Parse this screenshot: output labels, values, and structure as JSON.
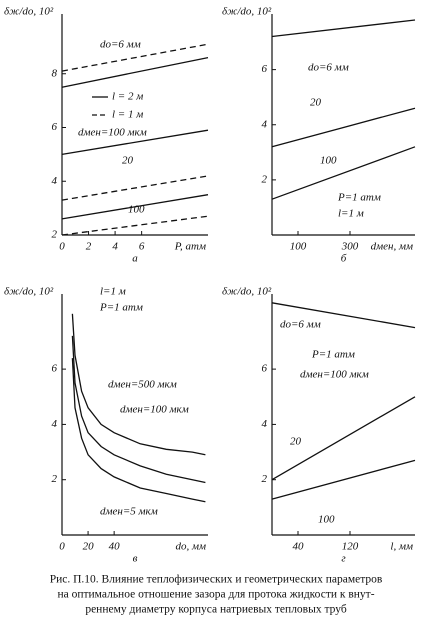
{
  "chart_data": [
    {
      "type": "line",
      "label": "а",
      "ylabel": "δж/dо, 10²",
      "xlabel": "P, атм",
      "xlim": [
        0,
        11
      ],
      "ylim": [
        2,
        10
      ],
      "xticks": [
        0,
        2,
        4,
        6
      ],
      "yticks": [
        2,
        4,
        6,
        8
      ],
      "x": [
        0,
        11
      ],
      "legend": [
        {
          "label": "l = 2 м",
          "dash": false
        },
        {
          "label": "l = 1 м",
          "dash": true
        }
      ],
      "series": [
        {
          "dash": false,
          "values": [
            7.5,
            8.6
          ]
        },
        {
          "dash": true,
          "values": [
            8.1,
            9.1
          ]
        },
        {
          "dash": false,
          "values": [
            5.0,
            5.9
          ]
        },
        {
          "dash": true,
          "values": [
            3.3,
            4.2
          ]
        },
        {
          "dash": false,
          "values": [
            2.6,
            3.5
          ]
        },
        {
          "dash": true,
          "values": [
            2.0,
            2.7
          ]
        }
      ],
      "annotations": [
        "dо=6 мм",
        "dмен=100 мкм",
        "20",
        "100"
      ]
    },
    {
      "type": "line",
      "label": "б",
      "ylabel": "δж/dо, 10²",
      "xlabel": "dмен, мм",
      "xlim": [
        0,
        550
      ],
      "ylim": [
        0,
        7.8
      ],
      "xticks": [
        100,
        300
      ],
      "yticks": [
        2,
        4,
        6
      ],
      "x": [
        0,
        550
      ],
      "series": [
        {
          "dash": false,
          "values": [
            7.2,
            7.8
          ]
        },
        {
          "dash": false,
          "values": [
            3.2,
            4.6
          ]
        },
        {
          "dash": false,
          "values": [
            1.3,
            3.2
          ]
        }
      ],
      "annotations": [
        "dо=6 мм",
        "20",
        "100",
        "P=1 атм",
        "l=1 м"
      ]
    },
    {
      "type": "line",
      "label": "в",
      "ylabel": "δж/dо, 10²",
      "xlabel": "dо, мм",
      "xlim": [
        0,
        112
      ],
      "ylim": [
        0,
        8.5
      ],
      "xticks": [
        0,
        20,
        40
      ],
      "yticks": [
        2,
        4,
        6
      ],
      "x": [
        8,
        10,
        15,
        20,
        30,
        40,
        60,
        80,
        100,
        110
      ],
      "series": [
        {
          "dash": false,
          "values": [
            8.0,
            6.5,
            5.2,
            4.6,
            4.0,
            3.7,
            3.3,
            3.1,
            3.0,
            2.9
          ]
        },
        {
          "dash": false,
          "values": [
            7.2,
            5.5,
            4.3,
            3.7,
            3.2,
            2.9,
            2.5,
            2.2,
            2.0,
            1.9
          ]
        },
        {
          "dash": false,
          "values": [
            6.4,
            4.6,
            3.5,
            2.9,
            2.4,
            2.1,
            1.7,
            1.5,
            1.3,
            1.2
          ]
        }
      ],
      "annotations": [
        "l=1 м",
        "P=1 атм",
        "dмен=500 мкм",
        "dмен=100 мкм",
        "dмен=5 мкм"
      ]
    },
    {
      "type": "line",
      "label": "г",
      "ylabel": "δж/dо, 10²",
      "xlabel": "l, мм",
      "xlim": [
        0,
        220
      ],
      "ylim": [
        0,
        8.5
      ],
      "xticks": [
        40,
        120
      ],
      "yticks": [
        2,
        4,
        6
      ],
      "x": [
        0,
        220
      ],
      "series": [
        {
          "dash": false,
          "values": [
            8.4,
            7.5
          ]
        },
        {
          "dash": false,
          "values": [
            2.0,
            5.0
          ]
        },
        {
          "dash": false,
          "values": [
            1.3,
            2.7
          ]
        }
      ],
      "annotations": [
        "dо=6 мм",
        "P=1 атм",
        "dмен=100 мкм",
        "20",
        "100"
      ]
    }
  ],
  "caption": [
    "Рис. П.10. Влияние теплофизических и геометрических параметров",
    "на оптимальное отношение зазора для протока жидкости к внут-",
    "реннему диаметру корпуса натриевых тепловых труб"
  ]
}
